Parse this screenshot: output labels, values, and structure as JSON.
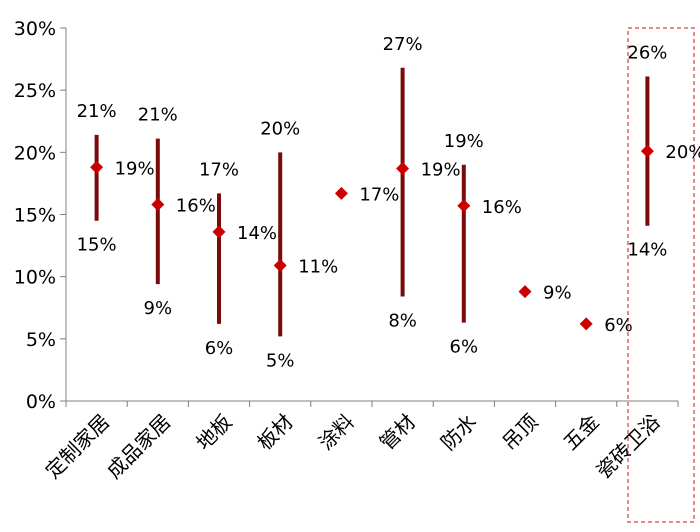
{
  "chart_data": {
    "type": "range",
    "title": "",
    "xlabel": "",
    "ylabel": "",
    "ylim": [
      0,
      0.3
    ],
    "y_ticks": [
      {
        "value": 0.0,
        "label": "0%"
      },
      {
        "value": 0.05,
        "label": "5%"
      },
      {
        "value": 0.1,
        "label": "10%"
      },
      {
        "value": 0.15,
        "label": "15%"
      },
      {
        "value": 0.2,
        "label": "20%"
      },
      {
        "value": 0.25,
        "label": "25%"
      },
      {
        "value": 0.3,
        "label": "30%"
      }
    ],
    "grid": false,
    "legend": "none",
    "highlighted_category": "瓷砖卫浴",
    "categories": [
      "定制家居",
      "成品家居",
      "地板",
      "板材",
      "涂料",
      "管材",
      "防水",
      "吊顶",
      "五金",
      "瓷砖卫浴"
    ],
    "series": [
      {
        "points": [
          {
            "category": "定制家居",
            "high": 0.214,
            "mid": 0.188,
            "low": 0.145,
            "high_label": "21%",
            "mid_label": "19%",
            "low_label": "15%"
          },
          {
            "category": "成品家居",
            "high": 0.211,
            "mid": 0.158,
            "low": 0.094,
            "high_label": "21%",
            "mid_label": "16%",
            "low_label": "9%"
          },
          {
            "category": "地板",
            "high": 0.167,
            "mid": 0.136,
            "low": 0.062,
            "high_label": "17%",
            "mid_label": "14%",
            "low_label": "6%"
          },
          {
            "category": "板材",
            "high": 0.2,
            "mid": 0.109,
            "low": 0.052,
            "high_label": "20%",
            "mid_label": "11%",
            "low_label": "5%"
          },
          {
            "category": "涂料",
            "high": null,
            "mid": 0.167,
            "low": null,
            "high_label": "",
            "mid_label": "17%",
            "low_label": ""
          },
          {
            "category": "管材",
            "high": 0.268,
            "mid": 0.187,
            "low": 0.084,
            "high_label": "27%",
            "mid_label": "19%",
            "low_label": "8%"
          },
          {
            "category": "防水",
            "high": 0.19,
            "mid": 0.157,
            "low": 0.063,
            "high_label": "19%",
            "mid_label": "16%",
            "low_label": "6%"
          },
          {
            "category": "吊顶",
            "high": null,
            "mid": 0.088,
            "low": null,
            "high_label": "",
            "mid_label": "9%",
            "low_label": ""
          },
          {
            "category": "五金",
            "high": null,
            "mid": 0.062,
            "low": null,
            "high_label": "",
            "mid_label": "6%",
            "low_label": ""
          },
          {
            "category": "瓷砖卫浴",
            "high": 0.261,
            "mid": 0.201,
            "low": 0.141,
            "high_label": "26%",
            "mid_label": "20%",
            "low_label": "14%"
          }
        ]
      }
    ],
    "colors": {
      "range_bar": "#7b0a0a",
      "marker": "#cc0000",
      "axis": "#808080",
      "highlight_box": "#e06060"
    }
  }
}
